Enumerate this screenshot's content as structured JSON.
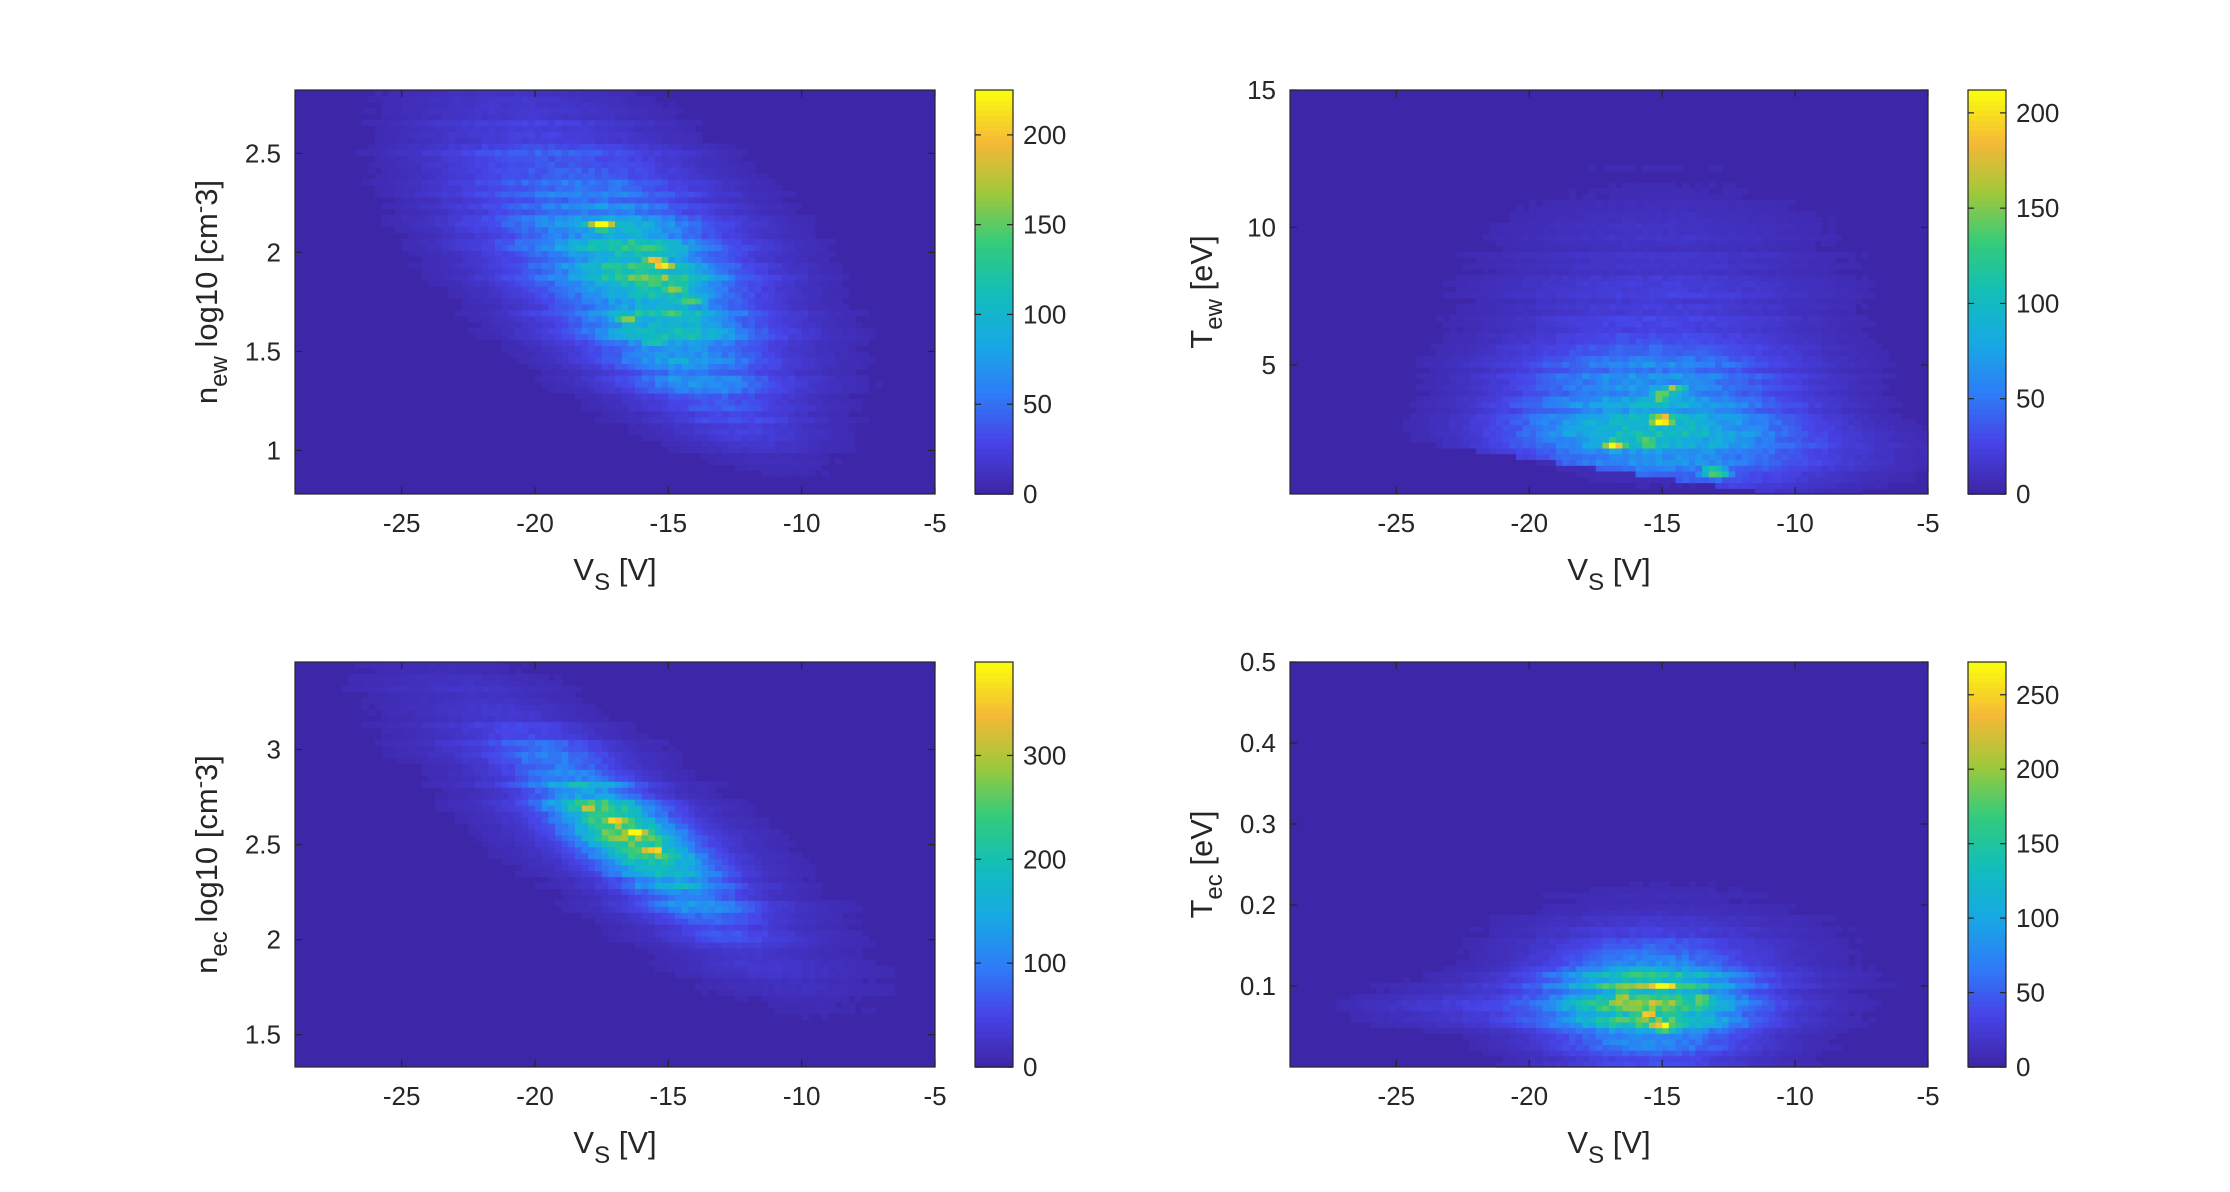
{
  "colors": {
    "background_low": "#3E26A8",
    "map": [
      "#3E26A8",
      "#4744E8",
      "#2D7EF7",
      "#17A9E3",
      "#12BEB9",
      "#35CB7A",
      "#A1C83A",
      "#F6B837",
      "#F9FB0E"
    ],
    "axis": "#262626"
  },
  "chart_data": [
    {
      "type": "heatmap",
      "panel": "n_ew",
      "xlabel": {
        "main": "V",
        "sub": "S",
        "rest": " [V]"
      },
      "ylabel": {
        "main": "n",
        "sub": "ew",
        "rest": "  log10 [cm",
        "sup": "-",
        "tail": "3]"
      },
      "xlim": [
        -29,
        -5
      ],
      "ylim": [
        0.78,
        2.82
      ],
      "xticks": [
        -25,
        -20,
        -15,
        -10,
        -5
      ],
      "yticks": [
        1,
        1.5,
        2,
        2.5
      ],
      "colorbar": {
        "min": 0,
        "max": 225,
        "ticks": [
          0,
          50,
          100,
          150,
          200
        ]
      },
      "bins": {
        "nx": 96,
        "ny": 68
      },
      "blobs": [
        {
          "x": -17,
          "y": 2.05,
          "sx": 4.2,
          "sy": 0.38,
          "a": 55
        },
        {
          "x": -15.5,
          "y": 1.88,
          "sx": 1.8,
          "sy": 0.18,
          "a": 60
        },
        {
          "x": -15.5,
          "y": 1.6,
          "sx": 2.8,
          "sy": 0.22,
          "a": 30
        },
        {
          "x": -14,
          "y": 1.35,
          "sx": 2.2,
          "sy": 0.14,
          "a": 20
        }
      ],
      "rot": -0.06,
      "hotspots": [
        {
          "x": -17.5,
          "y": 2.14,
          "v": 215
        },
        {
          "x": -15.5,
          "y": 1.97,
          "v": 220
        },
        {
          "x": -15.2,
          "y": 1.93,
          "v": 200
        },
        {
          "x": -14.8,
          "y": 1.82,
          "v": 190
        },
        {
          "x": -14.2,
          "y": 1.76,
          "v": 210
        },
        {
          "x": -16.5,
          "y": 1.66,
          "v": 170
        },
        {
          "x": -15.5,
          "y": 1.55,
          "v": 150
        }
      ]
    },
    {
      "type": "heatmap",
      "panel": "T_ew",
      "xlabel": {
        "main": "V",
        "sub": "S",
        "rest": " [V]"
      },
      "ylabel": {
        "main": "T",
        "sub": "ew",
        "rest": " [eV]",
        "sup": "",
        "tail": ""
      },
      "xlim": [
        -29,
        -5
      ],
      "ylim": [
        0.3,
        15
      ],
      "xticks": [
        -25,
        -20,
        -15,
        -10,
        -5
      ],
      "yticks": [
        5,
        10,
        15
      ],
      "colorbar": {
        "min": 0,
        "max": 212,
        "ticks": [
          0,
          50,
          100,
          150,
          200
        ]
      },
      "bins": {
        "nx": 96,
        "ny": 70
      },
      "blobs": [
        {
          "x": -15.5,
          "y": 3.2,
          "sx": 3.5,
          "sy": 1.7,
          "a": 70
        },
        {
          "x": -15,
          "y": 6.5,
          "sx": 4.5,
          "sy": 3.2,
          "a": 18
        },
        {
          "x": -13,
          "y": 1.6,
          "sx": 4.5,
          "sy": 0.7,
          "a": 25
        }
      ],
      "floor": {
        "slope": -0.14,
        "at": -25,
        "y0": 2.9
      },
      "hotspots": [
        {
          "x": -16.8,
          "y": 2.1,
          "v": 200
        },
        {
          "x": -15,
          "y": 3.0,
          "v": 205
        },
        {
          "x": -15,
          "y": 3.9,
          "v": 180
        },
        {
          "x": -14.5,
          "y": 4.1,
          "v": 170
        },
        {
          "x": -13,
          "y": 1.1,
          "v": 190
        },
        {
          "x": -15.5,
          "y": 2.2,
          "v": 150
        }
      ]
    },
    {
      "type": "heatmap",
      "panel": "n_ec",
      "xlabel": {
        "main": "V",
        "sub": "S",
        "rest": " [V]"
      },
      "ylabel": {
        "main": "n",
        "sub": "ec",
        "rest": "  log10 [cm",
        "sup": "-",
        "tail": "3]"
      },
      "xlim": [
        -29,
        -5
      ],
      "ylim": [
        1.33,
        3.46
      ],
      "xticks": [
        -25,
        -20,
        -15,
        -10,
        -5
      ],
      "yticks": [
        1.5,
        2,
        2.5,
        3
      ],
      "colorbar": {
        "min": 0,
        "max": 390,
        "ticks": [
          0,
          100,
          200,
          300
        ]
      },
      "bins": {
        "nx": 96,
        "ny": 68
      },
      "blobs": [
        {
          "x": -16.5,
          "y": 2.55,
          "sx": 2.3,
          "sy": 0.16,
          "a": 190,
          "tilt": -0.095
        },
        {
          "x": -17,
          "y": 2.6,
          "sx": 5.5,
          "sy": 0.32,
          "a": 40,
          "tilt": -0.085
        }
      ],
      "hotspots": [
        {
          "x": -17,
          "y": 2.62,
          "v": 360
        },
        {
          "x": -16.2,
          "y": 2.56,
          "v": 370
        },
        {
          "x": -15.6,
          "y": 2.47,
          "v": 340
        },
        {
          "x": -18,
          "y": 2.7,
          "v": 250
        }
      ]
    },
    {
      "type": "heatmap",
      "panel": "T_ec",
      "xlabel": {
        "main": "V",
        "sub": "S",
        "rest": " [V]"
      },
      "ylabel": {
        "main": "T",
        "sub": "ec",
        "rest": "  [eV]",
        "sup": "",
        "tail": ""
      },
      "xlim": [
        -29,
        -5
      ],
      "ylim": [
        0,
        0.5
      ],
      "xticks": [
        -25,
        -20,
        -15,
        -10,
        -5
      ],
      "yticks": [
        0.1,
        0.2,
        0.3,
        0.4,
        0.5
      ],
      "colorbar": {
        "min": 0,
        "max": 272,
        "ticks": [
          0,
          50,
          100,
          150,
          200,
          250
        ]
      },
      "bins": {
        "nx": 96,
        "ny": 72
      },
      "blobs": [
        {
          "x": -15.5,
          "y": 0.08,
          "sx": 2.4,
          "sy": 0.04,
          "a": 150
        },
        {
          "x": -15,
          "y": 0.1,
          "sx": 4.6,
          "sy": 0.07,
          "a": 22
        },
        {
          "x": -22,
          "y": 0.075,
          "sx": 3.2,
          "sy": 0.018,
          "a": 18
        }
      ],
      "hotspots": [
        {
          "x": -16.5,
          "y": 0.09,
          "v": 250
        },
        {
          "x": -15,
          "y": 0.1,
          "v": 260
        },
        {
          "x": -15.5,
          "y": 0.065,
          "v": 255
        },
        {
          "x": -15,
          "y": 0.05,
          "v": 265
        },
        {
          "x": -13.5,
          "y": 0.085,
          "v": 220
        }
      ]
    }
  ]
}
